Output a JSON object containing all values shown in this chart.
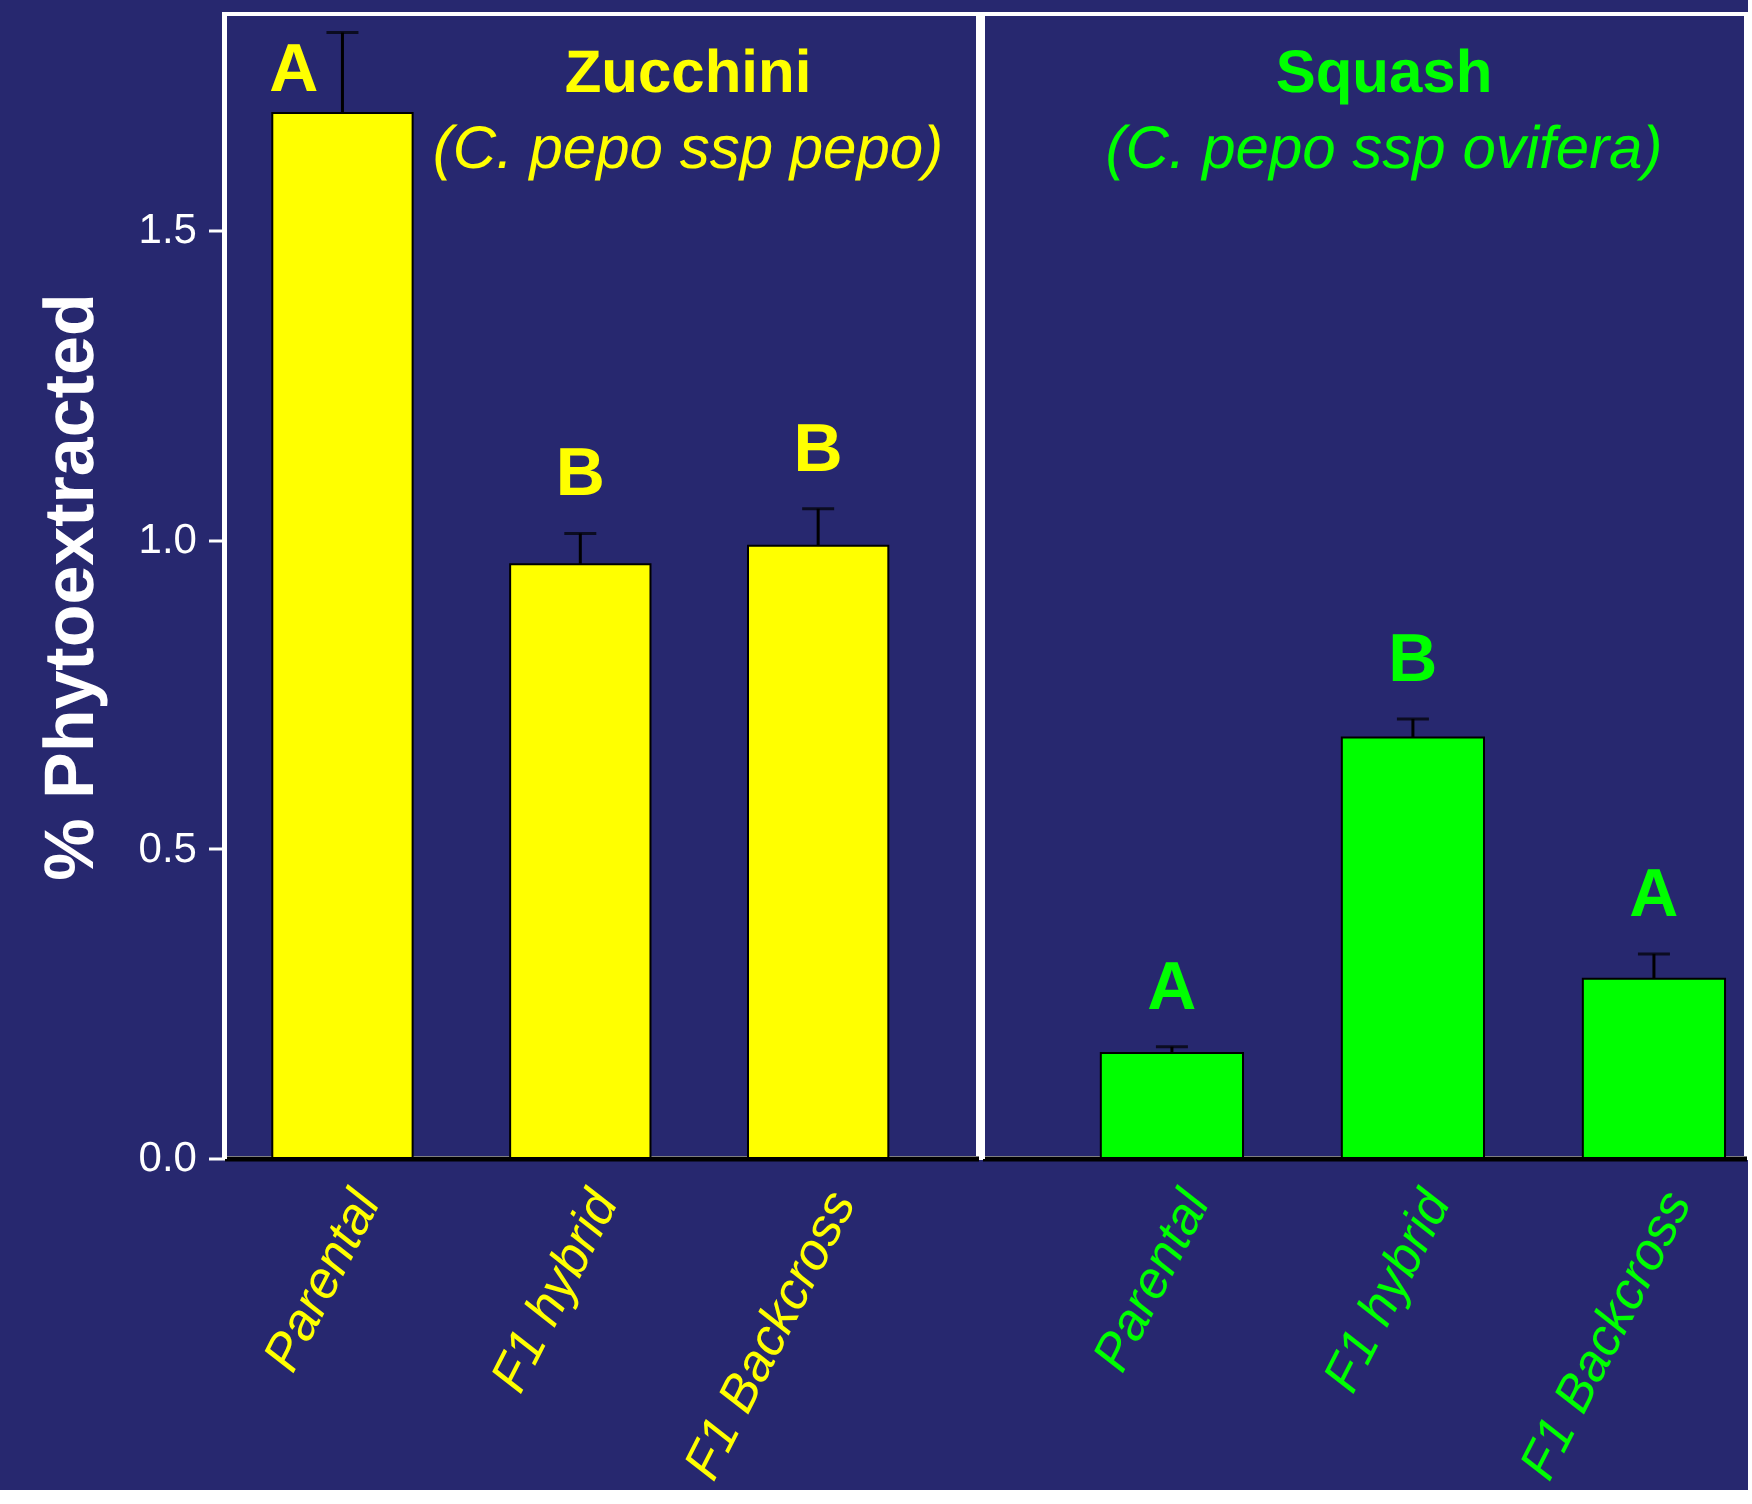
{
  "chart_data": [
    {
      "type": "bar",
      "title": "Zucchini",
      "subtitle": "(C. pepo ssp pepo)",
      "ylabel": "% Phytoextracted",
      "categories": [
        "Parental",
        "F1 hybrid",
        "F1 Backcross"
      ],
      "values": [
        1.69,
        0.96,
        0.99
      ],
      "errors": [
        [
          1.69,
          1.82
        ],
        [
          0.96,
          1.01
        ],
        [
          0.99,
          1.05
        ]
      ],
      "color": "#ffff00",
      "ylim": [
        0,
        1.85
      ],
      "yticks": [
        {
          "value": 0,
          "label": "0.0"
        },
        0.5,
        {
          "value": 1,
          "label": "1.0"
        },
        1.5
      ],
      "annotations": [
        "A",
        "B",
        "B"
      ]
    },
    {
      "type": "bar",
      "title": "Squash",
      "subtitle": "(C. pepo ssp ovifera)",
      "categories": [
        "Parental",
        "F1 hybrid",
        "F1 Backcross"
      ],
      "values": [
        0.17,
        0.68,
        0.29
      ],
      "errors": [
        [
          0.17,
          0.18
        ],
        [
          0.68,
          0.71
        ],
        [
          0.29,
          0.33
        ]
      ],
      "color": "#00ff00",
      "ylim": [
        0,
        1.85
      ],
      "tick_labels": "x",
      "annotations": [
        "A",
        "B",
        "A"
      ]
    }
  ]
}
